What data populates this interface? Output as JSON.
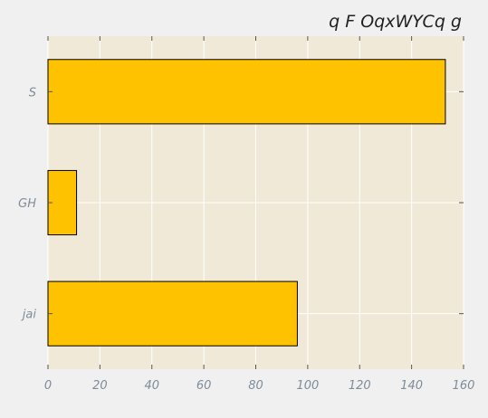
{
  "chart_data": {
    "type": "bar",
    "orientation": "horizontal",
    "title": "q F OqxWYCq g",
    "xlabel": "",
    "ylabel": "",
    "categories": [
      "S",
      "GH",
      "jai"
    ],
    "values": [
      153,
      11,
      96
    ],
    "xlim": [
      0,
      160
    ],
    "xticks": [
      0,
      20,
      40,
      60,
      80,
      100,
      120,
      140,
      160
    ],
    "grid": true,
    "legend": "none",
    "colors": {
      "bar_fill": "#ffc200",
      "bar_edge": "#000000",
      "plot_bg": "#f0e9d7",
      "page_bg": "#f0f0f0",
      "grid": "#ffffff",
      "tick_text": "#7f8c99",
      "title_text": "#222222"
    }
  }
}
